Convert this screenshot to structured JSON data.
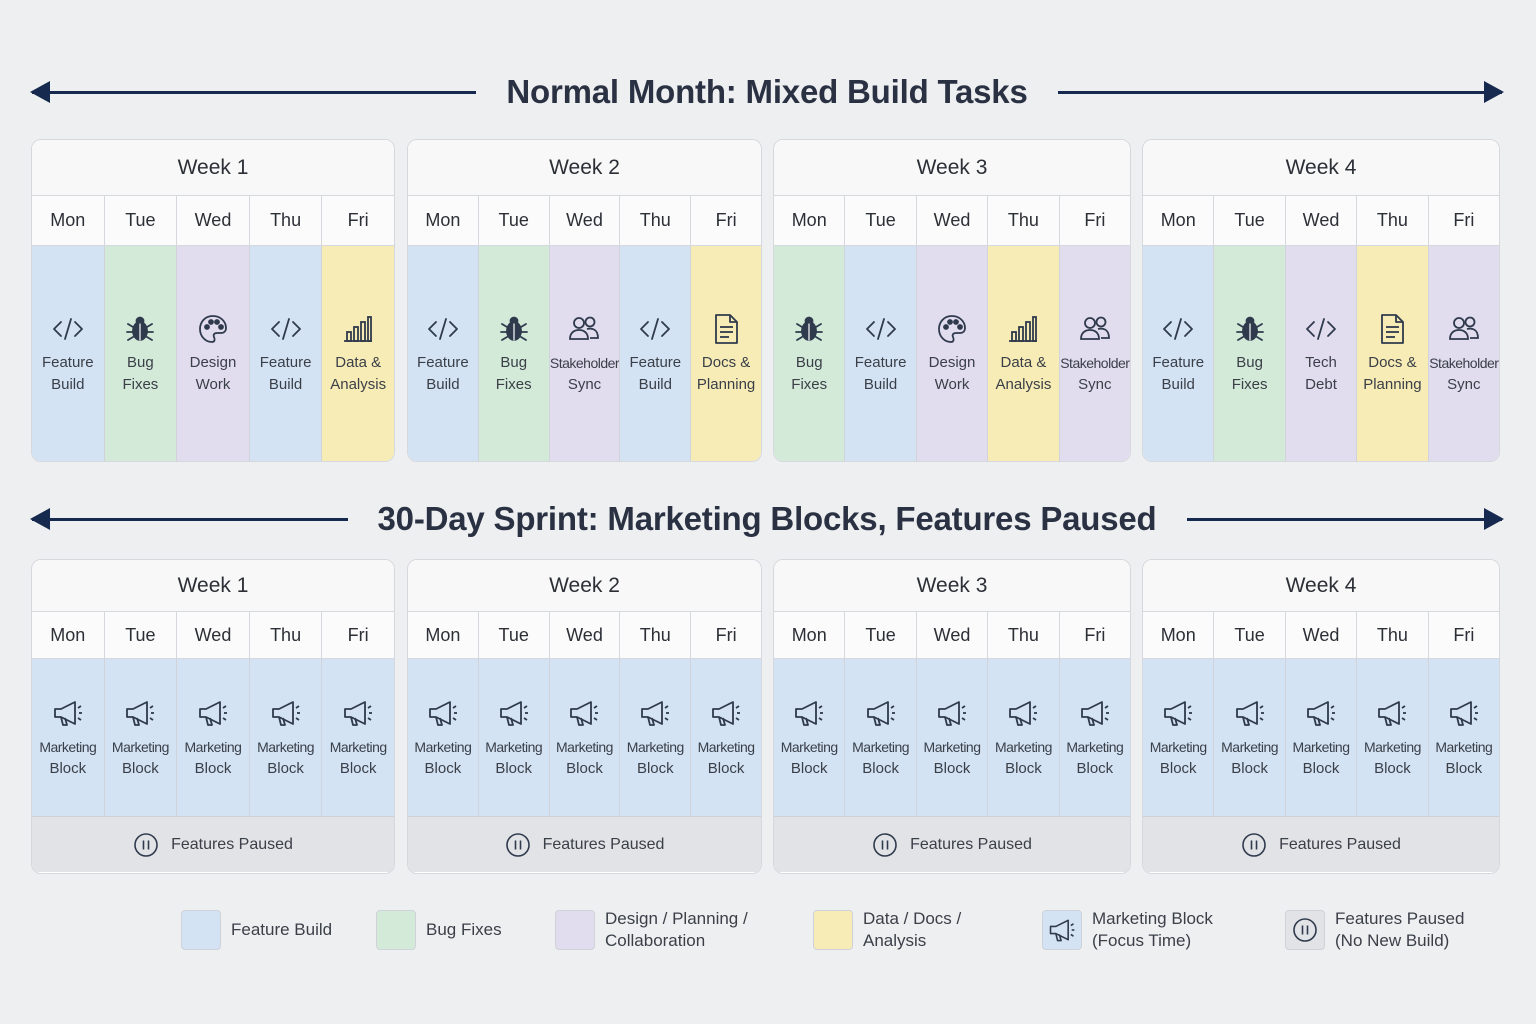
{
  "normal": {
    "title": "Normal Month: Mixed Build Tasks",
    "weeks": [
      {
        "label": "Week 1",
        "days": [
          "Mon",
          "Tue",
          "Wed",
          "Thu",
          "Fri"
        ],
        "cells": [
          {
            "type": "feature",
            "icon": "code-icon",
            "line1": "Feature",
            "line2": "Build"
          },
          {
            "type": "bug",
            "icon": "bug-icon",
            "line1": "Bug",
            "line2": "Fixes"
          },
          {
            "type": "design",
            "icon": "palette-icon",
            "line1": "Design",
            "line2": "Work"
          },
          {
            "type": "feature",
            "icon": "code-icon",
            "line1": "Feature",
            "line2": "Build"
          },
          {
            "type": "data",
            "icon": "bar-chart-icon",
            "line1": "Data &",
            "line2": "Analysis"
          }
        ]
      },
      {
        "label": "Week 2",
        "days": [
          "Mon",
          "Tue",
          "Wed",
          "Thu",
          "Fri"
        ],
        "cells": [
          {
            "type": "feature",
            "icon": "code-icon",
            "line1": "Feature",
            "line2": "Build"
          },
          {
            "type": "bug",
            "icon": "bug-icon",
            "line1": "Bug",
            "line2": "Fixes"
          },
          {
            "type": "design",
            "icon": "people-icon",
            "line1": "Stakeholder",
            "line2": "Sync"
          },
          {
            "type": "feature",
            "icon": "code-icon",
            "line1": "Feature",
            "line2": "Build"
          },
          {
            "type": "data",
            "icon": "document-icon",
            "line1": "Docs &",
            "line2": "Planning"
          }
        ]
      },
      {
        "label": "Week 3",
        "days": [
          "Mon",
          "Tue",
          "Wed",
          "Thu",
          "Fri"
        ],
        "cells": [
          {
            "type": "bug",
            "icon": "bug-icon",
            "line1": "Bug",
            "line2": "Fixes"
          },
          {
            "type": "feature",
            "icon": "code-icon",
            "line1": "Feature",
            "line2": "Build"
          },
          {
            "type": "design",
            "icon": "palette-icon",
            "line1": "Design",
            "line2": "Work"
          },
          {
            "type": "data",
            "icon": "bar-chart-icon",
            "line1": "Data &",
            "line2": "Analysis"
          },
          {
            "type": "design",
            "icon": "people-icon",
            "line1": "Stakeholder",
            "line2": "Sync"
          }
        ]
      },
      {
        "label": "Week 4",
        "days": [
          "Mon",
          "Tue",
          "Wed",
          "Thu",
          "Fri"
        ],
        "cells": [
          {
            "type": "feature",
            "icon": "code-icon",
            "line1": "Feature",
            "line2": "Build"
          },
          {
            "type": "bug",
            "icon": "bug-icon",
            "line1": "Bug",
            "line2": "Fixes"
          },
          {
            "type": "design",
            "icon": "code-icon",
            "line1": "Tech",
            "line2": "Debt"
          },
          {
            "type": "data",
            "icon": "document-icon",
            "line1": "Docs &",
            "line2": "Planning"
          },
          {
            "type": "design",
            "icon": "people-icon",
            "line1": "Stakeholder",
            "line2": "Sync"
          }
        ]
      }
    ]
  },
  "sprint": {
    "title": "30-Day Sprint: Marketing Blocks, Features Paused",
    "cell": {
      "icon": "megaphone-icon",
      "line1": "Marketing",
      "line2": "Block"
    },
    "paused_label": "Features Paused",
    "weeks": [
      {
        "label": "Week 1",
        "days": [
          "Mon",
          "Tue",
          "Wed",
          "Thu",
          "Fri"
        ]
      },
      {
        "label": "Week 2",
        "days": [
          "Mon",
          "Tue",
          "Wed",
          "Thu",
          "Fri"
        ]
      },
      {
        "label": "Week 3",
        "days": [
          "Mon",
          "Tue",
          "Wed",
          "Thu",
          "Fri"
        ]
      },
      {
        "label": "Week 4",
        "days": [
          "Mon",
          "Tue",
          "Wed",
          "Thu",
          "Fri"
        ]
      }
    ]
  },
  "legend": [
    {
      "type": "feature",
      "icon": "",
      "line1": "Feature Build",
      "line2": ""
    },
    {
      "type": "bug",
      "icon": "",
      "line1": "Bug Fixes",
      "line2": ""
    },
    {
      "type": "design",
      "icon": "",
      "line1": "Design / Planning /",
      "line2": "Collaboration"
    },
    {
      "type": "data",
      "icon": "",
      "line1": "Data / Docs /",
      "line2": "Analysis"
    },
    {
      "type": "mkt",
      "icon": "megaphone-icon",
      "line1": "Marketing Block",
      "line2": "(Focus Time)"
    },
    {
      "type": "paused",
      "icon": "pause-icon",
      "line1": "Features Paused",
      "line2": "(No New Build)"
    }
  ],
  "colors": {
    "feature": "#d3e3f4",
    "bug": "#d3ead9",
    "design": "#e2dcef",
    "data": "#f7ecb6",
    "mkt": "#d3e3f4",
    "paused": "#e1e3e6",
    "arrow": "#16294e"
  }
}
